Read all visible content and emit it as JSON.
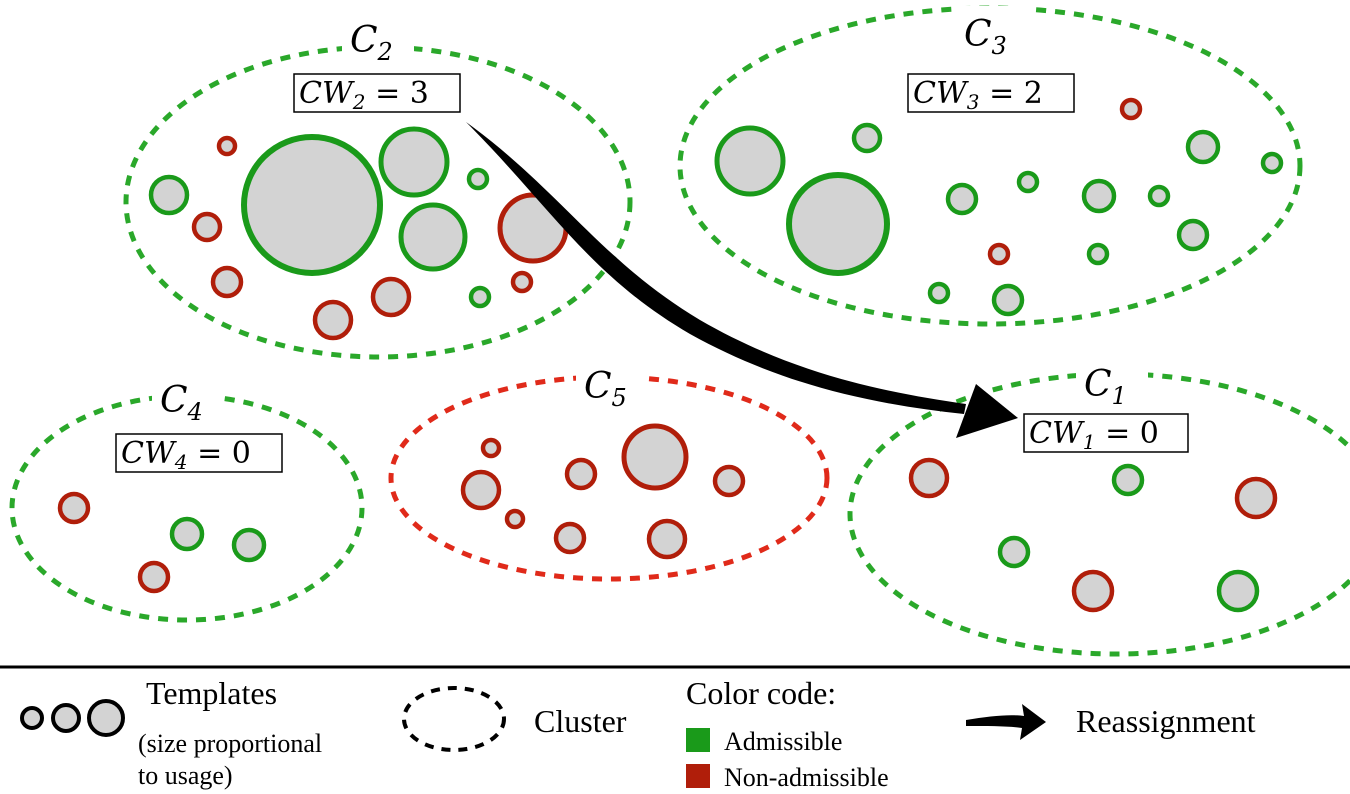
{
  "colors": {
    "admissible": "#1a9a1a",
    "non_admissible": "#b01e0a",
    "admissible_cluster": "#2aa82a",
    "non_admissible_cluster": "#e02a1a",
    "template_fill": "#d3d3d3"
  },
  "clusters": [
    {
      "id": "c2",
      "label_main": "C",
      "label_sub": "2",
      "status": "admissible",
      "cw": {
        "main": "CW",
        "sub": "2",
        "rest": " = 3"
      }
    },
    {
      "id": "c3",
      "label_main": "C",
      "label_sub": "3",
      "status": "admissible",
      "cw": {
        "main": "CW",
        "sub": "3",
        "rest": " = 2"
      }
    },
    {
      "id": "c4",
      "label_main": "C",
      "label_sub": "4",
      "status": "admissible",
      "cw": {
        "main": "CW",
        "sub": "4",
        "rest": " = 0"
      }
    },
    {
      "id": "c5",
      "label_main": "C",
      "label_sub": "5",
      "status": "non_admissible",
      "cw": null
    },
    {
      "id": "c1",
      "label_main": "C",
      "label_sub": "1",
      "status": "admissible",
      "cw": {
        "main": "CW",
        "sub": "1",
        "rest": " = 0"
      }
    }
  ],
  "arrow": {
    "from": "c2",
    "to": "c1",
    "meaning": "reassignment"
  },
  "legend": {
    "templates_title": "Templates",
    "templates_note_line1": "(size proportional",
    "templates_note_line2": "to usage)",
    "cluster_label": "Cluster",
    "color_code_title": "Color code:",
    "admissible_label": "Admissible",
    "non_admissible_label": "Non-admissible",
    "reassignment_label": "Reassignment"
  }
}
